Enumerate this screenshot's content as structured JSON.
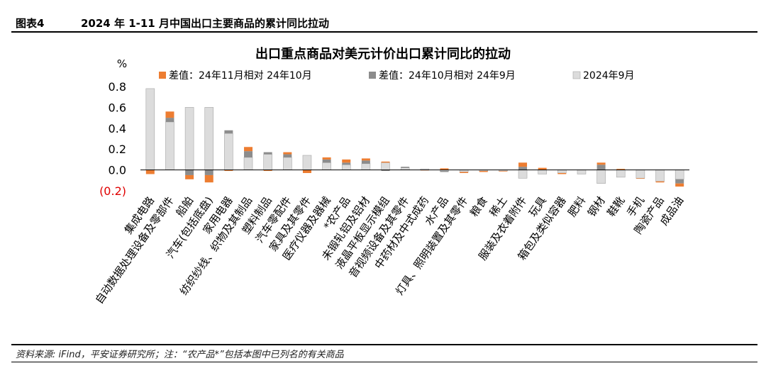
{
  "header": {
    "figure_no": "图表4",
    "figure_title": "2024 年 1-11 月中国出口主要商品的累计同比拉动"
  },
  "footer": {
    "source_note": "资料来源: iFind，平安证券研究所；注：“农产品*”包括本图中已列名的有关商品"
  },
  "colors": {
    "orange": "#ED7D31",
    "dark_gray": "#8C8C8C",
    "light_gray": "#DCDCDC",
    "light_gray_stroke": "#A6A6A6"
  },
  "chart_data": {
    "type": "bar",
    "title": "出口重点商品对美元计价出口累计同比的拉动",
    "ylabel": "%",
    "ylim": [
      -0.2,
      0.8
    ],
    "yticks": [
      "0.8",
      "0.6",
      "0.4",
      "0.2",
      "0.0",
      "(0.2)"
    ],
    "categories": [
      "集成电路",
      "自动数据处理设备及零部件",
      "船舶",
      "汽车(包括底盘)",
      "家用电器",
      "纺织纱线、织物及其制品",
      "塑料制品",
      "汽车零配件",
      "家具及其零件",
      "医疗仪器及器械",
      "*农产品",
      "未锻轧铝及铝材",
      "液晶平板显示模组",
      "音视频设备及其零件",
      "中药材及中式成药",
      "水产品",
      "灯具、照明装置及其零件",
      "粮食",
      "稀土",
      "服装及衣着附件",
      "玩具",
      "箱包及类似容器",
      "肥料",
      "钢材",
      "鞋靴",
      "手机",
      "陶瓷产品",
      "成品油"
    ],
    "series": [
      {
        "name": "差值：24年11月相对 24年10月",
        "values": [
          -0.04,
          0.06,
          -0.04,
          -0.07,
          -0.01,
          0.04,
          -0.01,
          0.02,
          -0.03,
          0.02,
          0.03,
          0.02,
          0.01,
          0.0,
          -0.005,
          0.015,
          -0.01,
          -0.01,
          -0.005,
          0.04,
          0.02,
          -0.01,
          0.0,
          0.02,
          0.01,
          -0.005,
          -0.01,
          -0.03
        ]
      },
      {
        "name": "差值：24年10月相对 24年9月",
        "values": [
          0.0,
          0.04,
          -0.05,
          -0.05,
          0.03,
          0.06,
          0.02,
          0.03,
          0.0,
          0.03,
          0.02,
          0.03,
          -0.01,
          0.01,
          0.0,
          -0.01,
          0.0,
          0.0,
          0.0,
          0.03,
          0.0,
          0.0,
          0.0,
          0.05,
          0.0,
          0.0,
          0.0,
          -0.04
        ]
      },
      {
        "name": "2024年9月",
        "values": [
          0.78,
          0.46,
          0.6,
          0.6,
          0.35,
          0.12,
          0.15,
          0.12,
          0.14,
          0.07,
          0.05,
          0.06,
          0.07,
          0.02,
          0.01,
          -0.01,
          -0.02,
          -0.01,
          -0.01,
          -0.08,
          -0.04,
          -0.03,
          -0.04,
          -0.13,
          -0.07,
          -0.08,
          -0.11,
          -0.09
        ]
      }
    ],
    "legend_position": "top",
    "grid": false
  }
}
